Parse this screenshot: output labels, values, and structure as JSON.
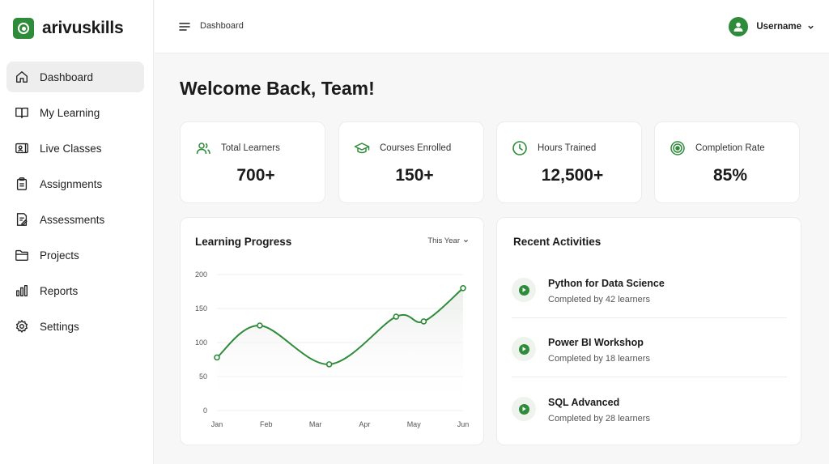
{
  "app": {
    "name": "arivuskills"
  },
  "sidebar": {
    "items": [
      {
        "label": "Dashboard",
        "icon": "home-icon",
        "active": true
      },
      {
        "label": "My Learning",
        "icon": "book-icon",
        "active": false
      },
      {
        "label": "Live Classes",
        "icon": "video-icon",
        "active": false
      },
      {
        "label": "Assignments",
        "icon": "clipboard-icon",
        "active": false
      },
      {
        "label": "Assessments",
        "icon": "document-edit-icon",
        "active": false
      },
      {
        "label": "Projects",
        "icon": "folder-icon",
        "active": false
      },
      {
        "label": "Reports",
        "icon": "bar-chart-icon",
        "active": false
      },
      {
        "label": "Settings",
        "icon": "gear-icon",
        "active": false
      }
    ]
  },
  "header": {
    "breadcrumb": "Dashboard",
    "username": "Username"
  },
  "main": {
    "welcome": "Welcome Back, Team!"
  },
  "stats": [
    {
      "label": "Total Learners",
      "value": "700+",
      "icon": "users-icon"
    },
    {
      "label": "Courses Enrolled",
      "value": "150+",
      "icon": "graduation-cap-icon"
    },
    {
      "label": "Hours Trained",
      "value": "12,500+",
      "icon": "clock-icon"
    },
    {
      "label": "Completion Rate",
      "value": "85%",
      "icon": "target-icon"
    }
  ],
  "progress": {
    "title": "Learning Progress",
    "range": "This Year"
  },
  "chart_data": {
    "type": "area",
    "categories": [
      "Jan",
      "Feb",
      "Mar",
      "Apr",
      "May",
      "Jun"
    ],
    "x": [
      0,
      0.87,
      2.28,
      3.64,
      4.2,
      5
    ],
    "values": [
      78,
      125,
      68,
      138,
      131,
      180
    ],
    "yticks": [
      0,
      50,
      100,
      150,
      200
    ],
    "ylim": [
      0,
      200
    ],
    "grid": true,
    "title": "",
    "xlabel": "",
    "ylabel": ""
  },
  "activities": {
    "title": "Recent Activities",
    "items": [
      {
        "title": "Python for Data Science",
        "subtitle": "Completed by 42 learners"
      },
      {
        "title": "Power BI Workshop",
        "subtitle": "Completed by 18 learners"
      },
      {
        "title": "SQL Advanced",
        "subtitle": "Completed by 28 learners"
      }
    ]
  },
  "colors": {
    "accent": "#2e8b3a",
    "background": "#f7f7f7",
    "card": "#ffffff",
    "border": "#ececec"
  }
}
